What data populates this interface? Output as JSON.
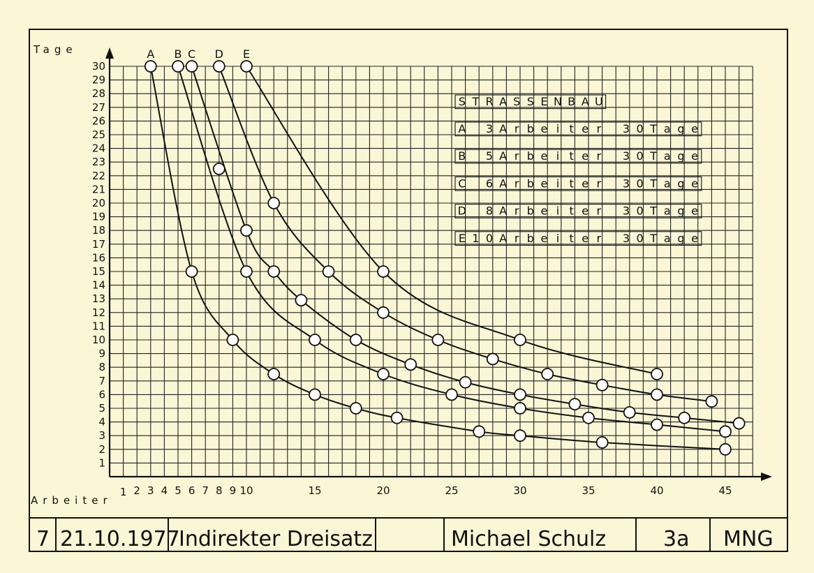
{
  "chart_data": {
    "type": "line",
    "title": "STRASSENBAU",
    "ylabel": "Tage",
    "xlabel": "Arbeiter",
    "xlim": [
      0,
      47
    ],
    "ylim": [
      0,
      30
    ],
    "x_ticks": [
      1,
      2,
      3,
      4,
      5,
      6,
      7,
      8,
      9,
      10,
      15,
      20,
      25,
      30,
      35,
      40,
      45
    ],
    "y_ticks": [
      1,
      2,
      3,
      4,
      5,
      6,
      7,
      8,
      9,
      10,
      11,
      12,
      13,
      14,
      15,
      16,
      17,
      18,
      19,
      20,
      21,
      22,
      23,
      24,
      25,
      26,
      27,
      28,
      29,
      30
    ],
    "grid": true,
    "series": [
      {
        "name": "A",
        "x": [
          3,
          6,
          9,
          12,
          15,
          18,
          21,
          27,
          30,
          36,
          45
        ],
        "y": [
          30,
          15,
          10,
          7.5,
          6,
          5,
          4.3,
          3.3,
          3,
          2.5,
          2
        ]
      },
      {
        "name": "B",
        "x": [
          5,
          10,
          15,
          20,
          25,
          30,
          35,
          40,
          45
        ],
        "y": [
          30,
          15,
          10,
          7.5,
          6,
          5,
          4.3,
          3.8,
          3.3
        ]
      },
      {
        "name": "C",
        "x": [
          6,
          10,
          12,
          14,
          18,
          22,
          26,
          30,
          34,
          38,
          42,
          46
        ],
        "y": [
          30,
          18,
          15,
          12.9,
          10,
          8.2,
          6.9,
          6,
          5.3,
          4.7,
          4.3,
          3.9
        ]
      },
      {
        "name": "D",
        "x": [
          8,
          12,
          16,
          20,
          24,
          28,
          32,
          36,
          40,
          44
        ],
        "y": [
          30,
          20,
          15,
          12,
          10,
          8.6,
          7.5,
          6.7,
          6,
          5.5
        ]
      },
      {
        "name": "E",
        "x": [
          10,
          20,
          30,
          40
        ],
        "y": [
          30,
          15,
          10,
          7.5
        ]
      }
    ],
    "extra_points": [
      {
        "x": 8,
        "y": 22.5
      }
    ]
  },
  "legend": {
    "title": "STRASSENBAU",
    "rows": [
      {
        "key": "A",
        "workers": "3",
        "unit": "Arbeiter",
        "days": "30",
        "days_unit": "Tage"
      },
      {
        "key": "B",
        "workers": "5",
        "unit": "Arbeiter",
        "days": "30",
        "days_unit": "Tage"
      },
      {
        "key": "C",
        "workers": "6",
        "unit": "Arbeiter",
        "days": "30",
        "days_unit": "Tage"
      },
      {
        "key": "D",
        "workers": "8",
        "unit": "Arbeiter",
        "days": "30",
        "days_unit": "Tage"
      },
      {
        "key": "E",
        "workers": "10",
        "unit": "Arbeiter",
        "days": "30",
        "days_unit": "Tage"
      }
    ]
  },
  "footer": {
    "number": "7",
    "date": "21.10.1977",
    "subject": "Indirekter Dreisatz",
    "name": "Michael Schulz",
    "class": "3a",
    "school": "MNG"
  }
}
